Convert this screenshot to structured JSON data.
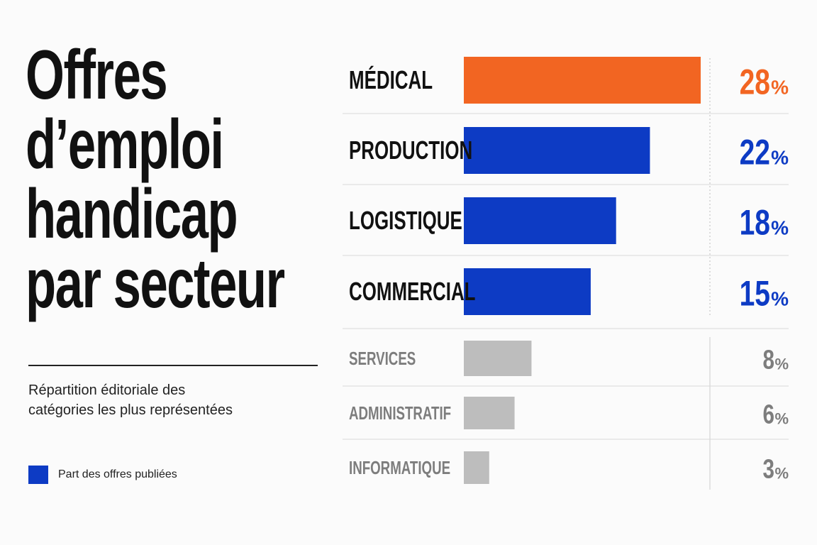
{
  "title_lines": [
    "Offres",
    "d’emploi",
    "handicap",
    "par secteur"
  ],
  "subtitle_lines": [
    "Répartition éditoriale des",
    "catégories les plus représentées"
  ],
  "legend": {
    "label": "Part des offres publiées",
    "color": "#0d3bc4"
  },
  "colors": {
    "highlight": "#f26522",
    "primary": "#0d3bc4",
    "muted": "#bdbdbd",
    "muted_text": "#7d7d7d"
  },
  "chart_data": {
    "type": "bar",
    "orientation": "horizontal",
    "unit": "%",
    "categories": [
      "MÉDICAL",
      "PRODUCTION",
      "LOGISTIQUE",
      "COMMERCIAL",
      "SERVICES",
      "ADMINISTRATIF",
      "INFORMATIQUE"
    ],
    "values": [
      28,
      22,
      18,
      15,
      8,
      6,
      3
    ],
    "value_labels": [
      "28",
      "22",
      "18",
      "15",
      "8",
      "6",
      "3"
    ],
    "highlight": [
      "highlight",
      "primary",
      "primary",
      "primary",
      "muted",
      "muted",
      "muted"
    ],
    "grid": false
  }
}
